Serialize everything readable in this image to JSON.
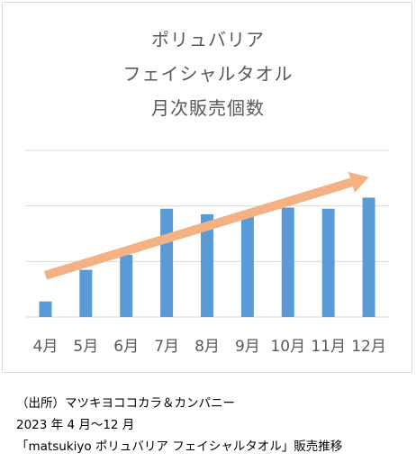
{
  "chart_data": {
    "type": "bar",
    "title_lines": [
      "ポリュバリア",
      "フェイシャルタオル",
      "月次販売個数"
    ],
    "categories": [
      "4月",
      "5月",
      "6月",
      "7月",
      "8月",
      "9月",
      "10月",
      "11月",
      "12月"
    ],
    "values": [
      0.28,
      0.85,
      1.12,
      1.95,
      1.85,
      1.82,
      1.97,
      1.95,
      2.15
    ],
    "ylim": [
      0,
      3
    ],
    "gridlines": [
      0,
      1,
      2,
      3
    ],
    "y_tick_labels_shown": false,
    "bar_color": "#5b9bd5",
    "gridline_color": "#d9d9d9",
    "trend_arrow": {
      "from": {
        "x": "4月",
        "y": 0.75
      },
      "to": {
        "x": "12月",
        "y": 2.52
      },
      "color": "#f4b183"
    }
  },
  "source_lines": [
    "（出所）マツキヨココカラ＆カンパニー",
    "2023 年 4 月～12 月",
    "「matsukiyo  ポリュバリア  フェイシャルタオル」販売推移"
  ]
}
